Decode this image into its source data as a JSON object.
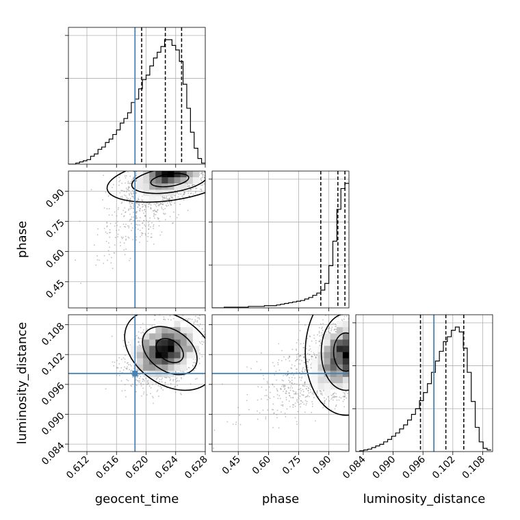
{
  "chart_data": {
    "type": "corner",
    "parameters": [
      "geocent_time",
      "phase",
      "luminosity_distance"
    ],
    "truths": {
      "geocent_time": 0.6185,
      "phase": null,
      "luminosity_distance": 0.0982
    },
    "colors": {
      "truth": "#4682b4",
      "hist": "#000000",
      "grid": "#b0b0b0",
      "scatter": "#888888"
    },
    "axes": {
      "geocent_time": {
        "label": "geocent_time",
        "range": [
          0.6095,
          0.628
        ],
        "ticks": [
          0.612,
          0.616,
          0.62,
          0.624,
          0.628
        ],
        "tick_labels": [
          "0.612",
          "0.616",
          "0.620",
          "0.624",
          "0.628"
        ]
      },
      "phase": {
        "label": "phase",
        "range": [
          0.32,
          1.0
        ],
        "ticks": [
          0.45,
          0.6,
          0.75,
          0.9
        ],
        "tick_labels": [
          "0.45",
          "0.60",
          "0.75",
          "0.90"
        ]
      },
      "luminosity_distance": {
        "label": "luminosity_distance",
        "range": [
          0.0825,
          0.11
        ],
        "ticks": [
          0.084,
          0.09,
          0.096,
          0.102,
          0.108
        ],
        "tick_labels": [
          "0.084",
          "0.090",
          "0.096",
          "0.102",
          "0.108"
        ]
      }
    },
    "histograms": [
      {
        "param": "geocent_time",
        "quantiles": [
          0.6194,
          0.6226,
          0.6248
        ],
        "bin_edges": [
          0.6095,
          0.61,
          0.6105,
          0.611,
          0.6115,
          0.612,
          0.6125,
          0.613,
          0.6135,
          0.614,
          0.6145,
          0.615,
          0.6155,
          0.616,
          0.6165,
          0.617,
          0.6175,
          0.618,
          0.6185,
          0.619,
          0.6195,
          0.62,
          0.6205,
          0.621,
          0.6215,
          0.622,
          0.6225,
          0.623,
          0.6235,
          0.624,
          0.6245,
          0.625,
          0.6255,
          0.626,
          0.6265,
          0.627,
          0.6275,
          0.628
        ],
        "counts": [
          0,
          0,
          1,
          2,
          3,
          4,
          7,
          9,
          13,
          15,
          19,
          22,
          26,
          30,
          36,
          40,
          45,
          54,
          57,
          66,
          74,
          78,
          86,
          93,
          98,
          103,
          109,
          109,
          104,
          100,
          90,
          70,
          49,
          28,
          14,
          5,
          1
        ]
      },
      {
        "param": "phase",
        "quantiles": [
          0.86,
          0.945,
          0.98
        ],
        "bin_edges": [
          0.32,
          0.34,
          0.36,
          0.38,
          0.4,
          0.42,
          0.44,
          0.46,
          0.48,
          0.5,
          0.52,
          0.54,
          0.56,
          0.58,
          0.6,
          0.62,
          0.64,
          0.66,
          0.68,
          0.7,
          0.72,
          0.74,
          0.76,
          0.78,
          0.8,
          0.82,
          0.84,
          0.86,
          0.88,
          0.9,
          0.92,
          0.94,
          0.96,
          0.98,
          1.0
        ],
        "counts": [
          0,
          0,
          0,
          1,
          1,
          1,
          1,
          1,
          1,
          2,
          2,
          2,
          2,
          3,
          3,
          3,
          4,
          5,
          6,
          7,
          8,
          9,
          10,
          12,
          14,
          17,
          20,
          24,
          33,
          57,
          90,
          133,
          161,
          168
        ]
      },
      {
        "param": "luminosity_distance",
        "quantiles": [
          0.0955,
          0.1006,
          0.1042
        ],
        "bin_edges": [
          0.0825,
          0.0833,
          0.0841,
          0.0849,
          0.0857,
          0.0865,
          0.0873,
          0.0881,
          0.0889,
          0.0897,
          0.0905,
          0.0913,
          0.0921,
          0.0929,
          0.0937,
          0.0945,
          0.0953,
          0.0961,
          0.0969,
          0.0977,
          0.0985,
          0.0993,
          0.1001,
          0.1009,
          0.1017,
          0.1025,
          0.1033,
          0.1041,
          0.1049,
          0.1057,
          0.1065,
          0.1073,
          0.1081,
          0.1089,
          0.1097
        ],
        "counts": [
          0,
          1,
          2,
          3,
          5,
          7,
          9,
          12,
          15,
          19,
          23,
          28,
          33,
          39,
          46,
          53,
          63,
          73,
          84,
          98,
          112,
          124,
          136,
          142,
          150,
          154,
          148,
          128,
          98,
          62,
          30,
          12,
          4,
          2
        ]
      }
    ]
  }
}
